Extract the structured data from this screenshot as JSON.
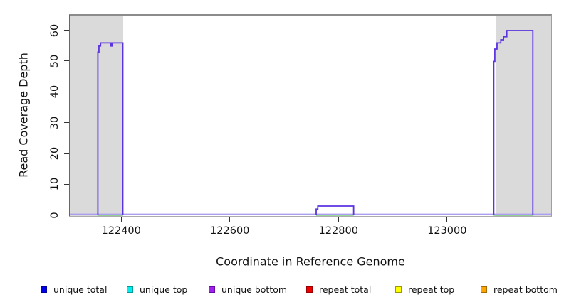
{
  "chart_data": {
    "type": "line-step",
    "title": "",
    "xlabel": "Coordinate in Reference Genome",
    "ylabel": "Read Coverage Depth",
    "xlim": [
      122304,
      123193
    ],
    "ylim": [
      0,
      65
    ],
    "xticks": [
      122400,
      122600,
      122800,
      123000
    ],
    "yticks": [
      0,
      10,
      20,
      30,
      40,
      50,
      60
    ],
    "grid": false,
    "masked_regions": [
      [
        122304,
        122404
      ],
      [
        123089,
        123193
      ]
    ],
    "curve_color": "#5b33e0",
    "zero_line_color": "#ab9df0",
    "zero_line_green_color": "#7ccd7c",
    "masked_region_color": "#dadada",
    "series": [
      {
        "name": "coverage depth steps",
        "humps": [
          {
            "points": [
              [
                122357,
                53
              ],
              [
                122359,
                55
              ],
              [
                122362,
                56
              ],
              [
                122381,
                55
              ],
              [
                122383,
                56
              ]
            ],
            "end": 122403
          },
          {
            "points": [
              [
                122759,
                2
              ],
              [
                122762,
                3
              ]
            ],
            "end": 122828
          },
          {
            "points": [
              [
                123086,
                50
              ],
              [
                123088,
                54
              ],
              [
                123092,
                56
              ],
              [
                123099,
                57
              ],
              [
                123104,
                58
              ],
              [
                123110,
                60
              ]
            ],
            "end": 123158
          }
        ]
      },
      {
        "name": "zero baseline",
        "range": [
          122304,
          123193
        ],
        "value": 0
      },
      {
        "name": "zero baseline green segments",
        "segments": [
          [
            122357,
            122403
          ],
          [
            122759,
            122828
          ],
          [
            123086,
            123158
          ]
        ],
        "value": 0
      }
    ],
    "legend_position": "bottom",
    "legend": [
      {
        "label": "unique total",
        "color": "#0000ee",
        "border": "#00009a"
      },
      {
        "label": "unique top",
        "color": "#00eeee",
        "border": "#009a9a"
      },
      {
        "label": "unique bottom",
        "color": "#a020f0",
        "border": "#6a0aa6"
      },
      {
        "label": "repeat total",
        "color": "#ee0000",
        "border": "#9a0000"
      },
      {
        "label": "repeat top",
        "color": "#ffff00",
        "border": "#9a9a00"
      },
      {
        "label": "repeat bottom",
        "color": "#ffa500",
        "border": "#a66a00"
      }
    ]
  }
}
